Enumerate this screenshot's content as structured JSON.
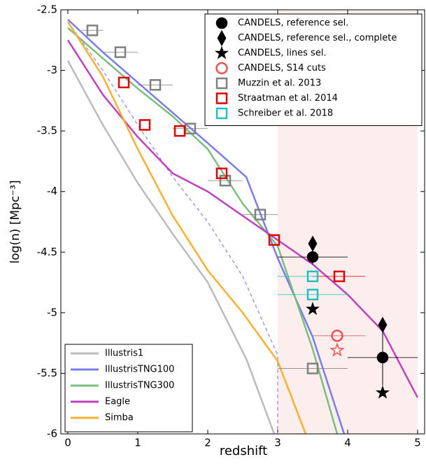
{
  "chart_data": {
    "type": "line",
    "xlabel": "redshift",
    "ylabel": "log(n) [Mpc⁻³]",
    "xlim": [
      -0.1,
      5.1
    ],
    "ylim": [
      -6.0,
      -2.5
    ],
    "xticks": [
      0,
      1,
      2,
      3,
      4,
      5
    ],
    "yticks": [
      -6.0,
      -5.5,
      -5.0,
      -4.5,
      -4.0,
      -3.5,
      -3.0,
      -2.5
    ],
    "shaded_x": [
      3,
      5
    ],
    "shaded_color": "#fdeeee",
    "series": [
      {
        "name": "Illustris1",
        "color": "#bbbbbb",
        "x": [
          0,
          0.5,
          1,
          1.5,
          2,
          2.55,
          2.95
        ],
        "values": [
          -2.92,
          -3.45,
          -3.93,
          -4.35,
          -4.75,
          -5.38,
          -6.0
        ]
      },
      {
        "name": "IllustrisTNG100",
        "color": "#7b7bf0",
        "x": [
          0,
          0.5,
          1,
          1.5,
          2,
          2.55,
          3,
          3.5,
          3.95
        ],
        "values": [
          -2.58,
          -2.85,
          -3.1,
          -3.35,
          -3.6,
          -3.88,
          -4.55,
          -5.2,
          -6.0
        ]
      },
      {
        "color": "#9a9af0",
        "dashed": true,
        "x": [
          0,
          0.5,
          1,
          1.5,
          2,
          2.5,
          3,
          3
        ],
        "values": [
          -2.6,
          -3.0,
          -3.45,
          -3.88,
          -4.25,
          -4.7,
          -5.35,
          -6.0
        ]
      },
      {
        "name": "IllustrisTNG300",
        "color": "#7cbf7c",
        "x": [
          0,
          0.5,
          1,
          1.5,
          2,
          2.5,
          3,
          3.5,
          3.85
        ],
        "values": [
          -2.65,
          -2.9,
          -3.15,
          -3.38,
          -3.65,
          -4.1,
          -4.45,
          -5.3,
          -6.0
        ]
      },
      {
        "name": "Eagle",
        "color": "#c040c0",
        "x": [
          0,
          0.5,
          1,
          1.5,
          2,
          2.5,
          3,
          3.5,
          4,
          4.5,
          5
        ],
        "values": [
          -2.75,
          -3.2,
          -3.55,
          -3.85,
          -4.0,
          -4.2,
          -4.4,
          -4.6,
          -4.85,
          -5.15,
          -5.7
        ]
      },
      {
        "name": "Simba",
        "color": "#f8b030",
        "x": [
          0,
          0.5,
          1,
          1.5,
          2,
          2.5,
          3,
          3.4
        ],
        "values": [
          -2.6,
          -3.05,
          -3.65,
          -4.2,
          -4.65,
          -5.0,
          -5.4,
          -6.0
        ]
      }
    ],
    "points": [
      {
        "name": "CANDELS, reference sel.",
        "color": "#000000",
        "marker": "circle",
        "filled": true,
        "x": [
          3.5,
          4.5
        ],
        "values": [
          -4.54,
          -5.37
        ],
        "xlo": [
          3.0,
          4.0
        ],
        "xhi": [
          4.0,
          5.0
        ],
        "ylo": [
          -4.6,
          -5.6
        ],
        "yhi": [
          -4.48,
          -5.15
        ]
      },
      {
        "name": "CANDELS, reference sel., complete",
        "color": "#000000",
        "marker": "diamond",
        "filled": true,
        "x": [
          3.5,
          4.5
        ],
        "values": [
          -4.43,
          -5.1
        ]
      },
      {
        "name": "CANDELS, lines sel.",
        "color": "#000000",
        "marker": "star",
        "filled": true,
        "x": [
          3.5,
          4.5
        ],
        "values": [
          -4.97,
          -5.66
        ]
      },
      {
        "name": "CANDELS, S14 cuts",
        "color": "#f05050",
        "marker": "circle",
        "filled": false,
        "x": [
          3.85
        ],
        "values": [
          -5.19
        ],
        "xlo": [
          3.5
        ],
        "xhi": [
          4.25
        ]
      },
      {
        "color": "#f05050",
        "marker": "star",
        "filled": false,
        "x": [
          3.85
        ],
        "values": [
          -5.31
        ]
      },
      {
        "name": "Muzzin et al. 2013",
        "color": "#808080",
        "marker": "square",
        "filled": false,
        "x": [
          0.35,
          0.75,
          1.25,
          1.75,
          2.25,
          2.75,
          3.5
        ],
        "values": [
          -2.67,
          -2.85,
          -3.12,
          -3.48,
          -3.91,
          -4.19,
          -5.46
        ],
        "xlo": [
          0.2,
          0.5,
          1.0,
          1.5,
          2.0,
          2.5,
          3.0
        ],
        "xhi": [
          0.5,
          1.0,
          1.5,
          2.0,
          2.5,
          3.0,
          4.0
        ]
      },
      {
        "name": "Straatman et al. 2014",
        "color": "#e00000",
        "marker": "square",
        "filled": false,
        "x": [
          0.8,
          1.1,
          1.6,
          2.2,
          2.95,
          3.88
        ],
        "values": [
          -3.1,
          -3.45,
          -3.5,
          -3.85,
          -4.4,
          -4.7
        ],
        "xlo": [
          null,
          null,
          null,
          null,
          null,
          3.5
        ],
        "xhi": [
          null,
          null,
          null,
          null,
          null,
          4.25
        ]
      },
      {
        "name": "Schreiber et al. 2018",
        "color": "#20c0c0",
        "marker": "square",
        "filled": false,
        "x": [
          3.5,
          3.5
        ],
        "values": [
          -4.7,
          -4.85
        ],
        "xlo": [
          3.0,
          3.0
        ],
        "xhi": [
          3.55,
          4.0
        ]
      }
    ]
  }
}
